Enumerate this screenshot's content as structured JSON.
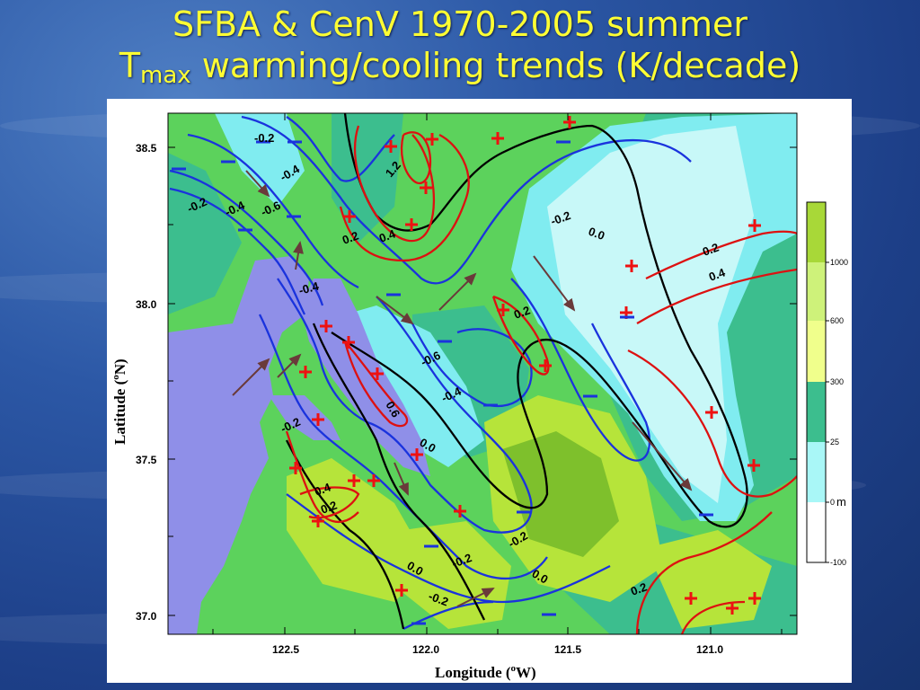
{
  "slide": {
    "title_line1": "SFBA & CenV 1970-2005 summer",
    "title_T": "T",
    "title_sub": "max",
    "title_line2_rest": " warming/cooling trends (K/decade)"
  },
  "map": {
    "xlabel": "Longitude (",
    "xlabel_sup": "o",
    "xlabel_end": "W)",
    "ylabel": "Latitude (",
    "ylabel_deg": "o",
    "ylabel_end": "N)",
    "x_ticks": [
      "122.5",
      "122.0",
      "121.5",
      "121.0"
    ],
    "y_ticks": [
      "38.5",
      "38.0",
      "37.5",
      "37.0"
    ],
    "colorbar_ticks": [
      "1000",
      "600",
      "300",
      "25",
      "0",
      "-100"
    ],
    "colorbar_unit": "m",
    "colors": {
      "ocean": "#8f8fe8",
      "lowland": "#c8f8f8",
      "light_cyan": "#80ecf0",
      "teal": "#3cbe8e",
      "green": "#5cd25c",
      "yellow_green": "#b6e43a",
      "olive": "#7ec02c",
      "warming_line": "#dd1111",
      "cooling_line": "#1a33dd",
      "zero_line": "#000000",
      "wind_arrow": "#6a3a3a"
    },
    "contour_labels": [
      "-0.2",
      "-0.4",
      "-0.2",
      "-0.4",
      "-0.6",
      "1.2",
      "0.2",
      "0.4",
      "-0.2",
      "0.0",
      "0.2",
      "0.4",
      "-0.4",
      "0.2",
      "-0.6",
      "-0.4",
      "0.6",
      "-0.2",
      "0.0",
      "0.4",
      "0.2",
      "0.0",
      "-0.2",
      "-0.2",
      "0.0",
      "-0.2",
      "0.2"
    ]
  }
}
